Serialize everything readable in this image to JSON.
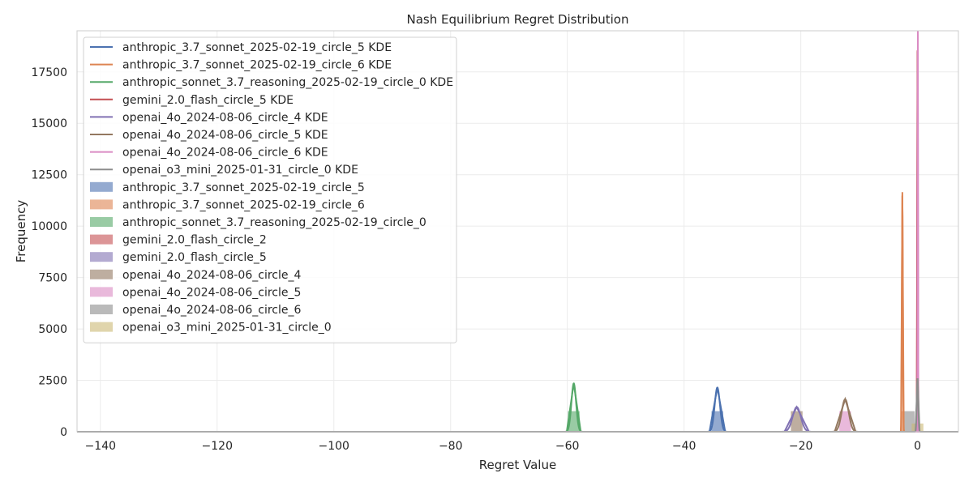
{
  "chart_data": {
    "type": "histogram+kde",
    "title": "Nash Equilibrium Regret Distribution",
    "xlabel": "Regret Value",
    "ylabel": "Frequency",
    "xlim": [
      -144,
      7
    ],
    "ylim": [
      0,
      19500
    ],
    "x_ticks": [
      -140,
      -120,
      -100,
      -80,
      -60,
      -40,
      -20,
      0
    ],
    "x_tick_labels": [
      "−140",
      "−120",
      "−100",
      "−80",
      "−60",
      "−40",
      "−20",
      "0"
    ],
    "y_ticks": [
      0,
      2500,
      5000,
      7500,
      10000,
      12500,
      15000,
      17500
    ],
    "y_tick_labels": [
      "0",
      "2500",
      "5000",
      "7500",
      "10000",
      "12500",
      "15000",
      "17500"
    ],
    "grid": true,
    "legend_position": "top-left",
    "kde_series": [
      {
        "name": "anthropic_3.7_sonnet_2025-02-19_circle_5 KDE",
        "color": "#4c72b0",
        "peaks": [
          {
            "x": -34.3,
            "height": 2150,
            "width": 0.45
          }
        ]
      },
      {
        "name": "anthropic_3.7_sonnet_2025-02-19_circle_6 KDE",
        "color": "#dd8452",
        "peaks": [
          {
            "x": -2.6,
            "height": 11650,
            "width": 0.08
          }
        ]
      },
      {
        "name": "anthropic_sonnet_3.7_reasoning_2025-02-19_circle_0 KDE",
        "color": "#55a868",
        "peaks": [
          {
            "x": -58.9,
            "height": 2350,
            "width": 0.4
          }
        ]
      },
      {
        "name": "gemini_2.0_flash_circle_5 KDE",
        "color": "#c44e52",
        "peaks": [
          {
            "x": 0.0,
            "height": 18550,
            "width": 0.05
          }
        ]
      },
      {
        "name": "openai_4o_2024-08-06_circle_4 KDE",
        "color": "#8172b3",
        "peaks": [
          {
            "x": -20.7,
            "height": 1200,
            "width": 0.7
          }
        ]
      },
      {
        "name": "openai_4o_2024-08-06_circle_5 KDE",
        "color": "#937860",
        "peaks": [
          {
            "x": -12.4,
            "height": 1580,
            "width": 0.6
          }
        ]
      },
      {
        "name": "openai_4o_2024-08-06_circle_6 KDE",
        "color": "#da8bc3",
        "peaks": [
          {
            "x": 0.05,
            "height": 19500,
            "width": 0.03
          }
        ]
      },
      {
        "name": "openai_o3_mini_2025-01-31_circle_0 KDE",
        "color": "#8c8c8c",
        "peaks": [
          {
            "x": 0.0,
            "height": 2600,
            "width": 0.12
          }
        ]
      }
    ],
    "hist_series": [
      {
        "name": "anthropic_3.7_sonnet_2025-02-19_circle_5",
        "color": "#4c72b0",
        "bars": [
          {
            "x0": -35.3,
            "x1": -33.3,
            "value": 1000
          }
        ]
      },
      {
        "name": "anthropic_3.7_sonnet_2025-02-19_circle_6",
        "color": "#dd8452",
        "bars": [
          {
            "x0": -2.8,
            "x1": -2.4,
            "value": 1000
          }
        ]
      },
      {
        "name": "anthropic_sonnet_3.7_reasoning_2025-02-19_circle_0",
        "color": "#55a868",
        "bars": [
          {
            "x0": -59.9,
            "x1": -57.9,
            "value": 1000
          }
        ]
      },
      {
        "name": "gemini_2.0_flash_circle_2",
        "color": "#c44e52",
        "bars": [
          {
            "x0": -0.15,
            "x1": 0.15,
            "value": 300
          }
        ]
      },
      {
        "name": "gemini_2.0_flash_circle_5",
        "color": "#8172b3",
        "bars": [
          {
            "x0": -0.1,
            "x1": 0.1,
            "value": 1000
          }
        ]
      },
      {
        "name": "openai_4o_2024-08-06_circle_4",
        "color": "#937860",
        "bars": [
          {
            "x0": -21.7,
            "x1": -19.7,
            "value": 1000
          }
        ]
      },
      {
        "name": "openai_4o_2024-08-06_circle_5",
        "color": "#da8bc3",
        "bars": [
          {
            "x0": -13.4,
            "x1": -11.4,
            "value": 1000
          }
        ]
      },
      {
        "name": "openai_4o_2024-08-06_circle_6",
        "color": "#8c8c8c",
        "bars": [
          {
            "x0": -2.5,
            "x1": -0.5,
            "value": 1000
          }
        ]
      },
      {
        "name": "openai_o3_mini_2025-01-31_circle_0",
        "color": "#ccb974",
        "bars": [
          {
            "x0": -1.0,
            "x1": 1.0,
            "value": 400
          }
        ]
      }
    ]
  }
}
